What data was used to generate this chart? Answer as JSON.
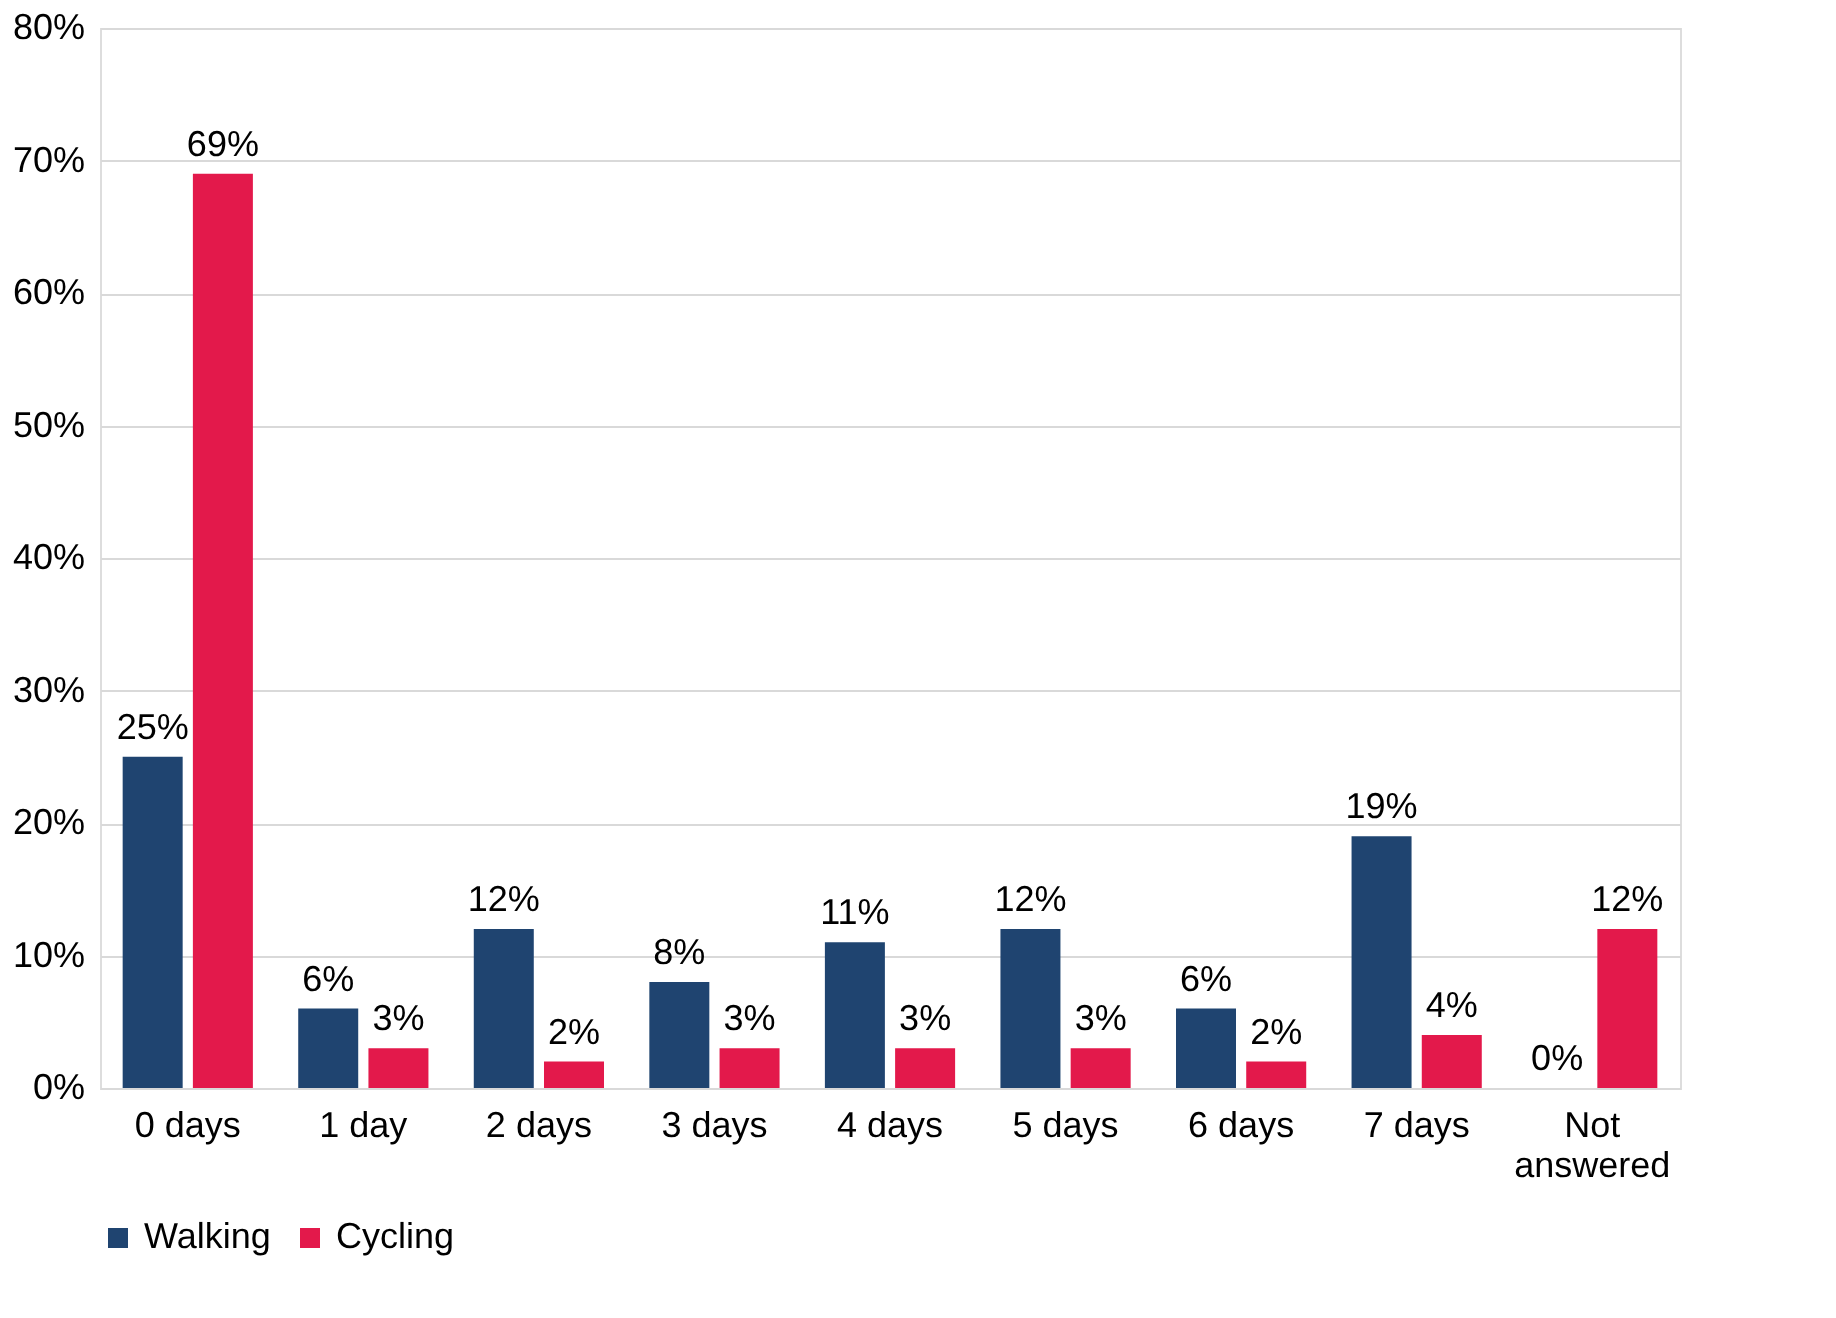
{
  "chart_data": {
    "type": "bar",
    "categories": [
      "0 days",
      "1 day",
      "2 days",
      "3 days",
      "4 days",
      "5 days",
      "6 days",
      "7 days",
      "Not answered"
    ],
    "series": [
      {
        "name": "Walking",
        "color": "#1f4470",
        "values": [
          25,
          6,
          12,
          8,
          11,
          12,
          6,
          19,
          0
        ]
      },
      {
        "name": "Cycling",
        "color": "#e3194b",
        "values": [
          69,
          3,
          2,
          3,
          3,
          3,
          2,
          4,
          12
        ]
      }
    ],
    "ylim": [
      0,
      80
    ],
    "yticks": [
      {
        "value": 0,
        "label": "0%"
      },
      {
        "value": 10,
        "label": "10%"
      },
      {
        "value": 20,
        "label": "20%"
      },
      {
        "value": 30,
        "label": "30%"
      },
      {
        "value": 40,
        "label": "40%"
      },
      {
        "value": 50,
        "label": "50%"
      },
      {
        "value": 60,
        "label": "60%"
      },
      {
        "value": 70,
        "label": "70%"
      },
      {
        "value": 80,
        "label": "80%"
      }
    ],
    "value_labels": [
      [
        "25%",
        "6%",
        "12%",
        "8%",
        "11%",
        "12%",
        "6%",
        "19%",
        "0%"
      ],
      [
        "69%",
        "3%",
        "2%",
        "3%",
        "3%",
        "3%",
        "2%",
        "4%",
        "12%"
      ]
    ],
    "grid": "y",
    "legend": "bottom"
  }
}
